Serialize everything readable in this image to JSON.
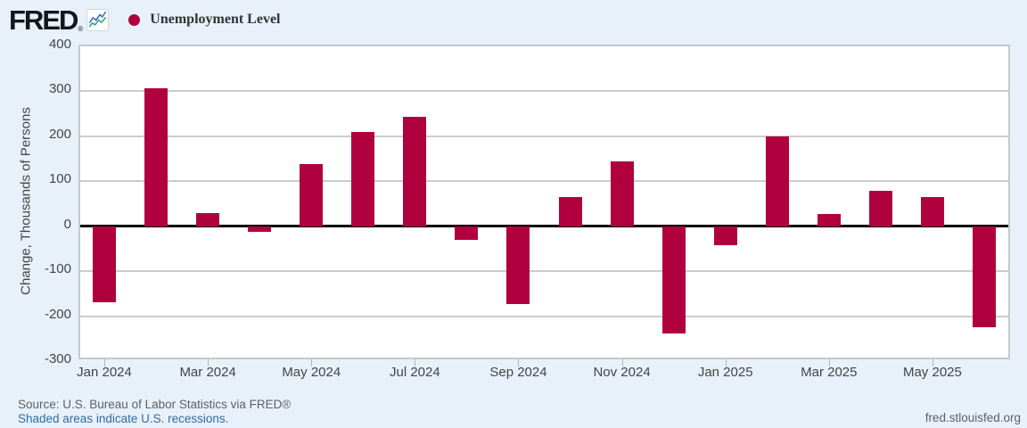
{
  "header": {
    "logo_text": "FRED",
    "logo_registered": "®",
    "legend": {
      "marker_color": "#b1003e",
      "label": "Unemployment Level"
    }
  },
  "chart_data": {
    "type": "bar",
    "series_name": "Unemployment Level",
    "categories": [
      "Jan 2024",
      "Feb 2024",
      "Mar 2024",
      "Apr 2024",
      "May 2024",
      "Jun 2024",
      "Jul 2024",
      "Aug 2024",
      "Sep 2024",
      "Oct 2024",
      "Nov 2024",
      "Dec 2024",
      "Jan 2025",
      "Feb 2025",
      "Mar 2025",
      "Apr 2025",
      "May 2025",
      "Jun 2025"
    ],
    "values": [
      -170,
      307,
      30,
      -12,
      138,
      210,
      243,
      -30,
      -174,
      64,
      145,
      -238,
      -43,
      200,
      27,
      78,
      65,
      -224
    ],
    "xtick_labels": [
      "Jan 2024",
      "Mar 2024",
      "May 2024",
      "Jul 2024",
      "Sep 2024",
      "Nov 2024",
      "Jan 2025",
      "Mar 2025",
      "May 2025"
    ],
    "xtick_every": 2,
    "title": "",
    "xlabel": "",
    "ylabel": "Change, Thousands of Persons",
    "ylim": [
      -300,
      400
    ],
    "yticks": [
      400,
      300,
      200,
      100,
      0,
      -100,
      -200,
      -300
    ],
    "grid": true,
    "legend_position": "top-left",
    "bar_color": "#b1003e",
    "zero_line_color": "#000000",
    "gridline_color": "#cccccc"
  },
  "footer": {
    "source_line": "Source: U.S. Bureau of Labor Statistics via FRED®",
    "recession_note": "Shaded areas indicate U.S. recessions.",
    "site_link": "fred.stlouisfed.org"
  },
  "colors": {
    "page_background": "#e8f1f9",
    "plot_background": "#ffffff",
    "accent_bar": "#b1003e",
    "axis_text": "#444444",
    "link_blue": "#2e6da4",
    "icon_line_blue": "#2f6fc4",
    "icon_line_green": "#33a188"
  }
}
